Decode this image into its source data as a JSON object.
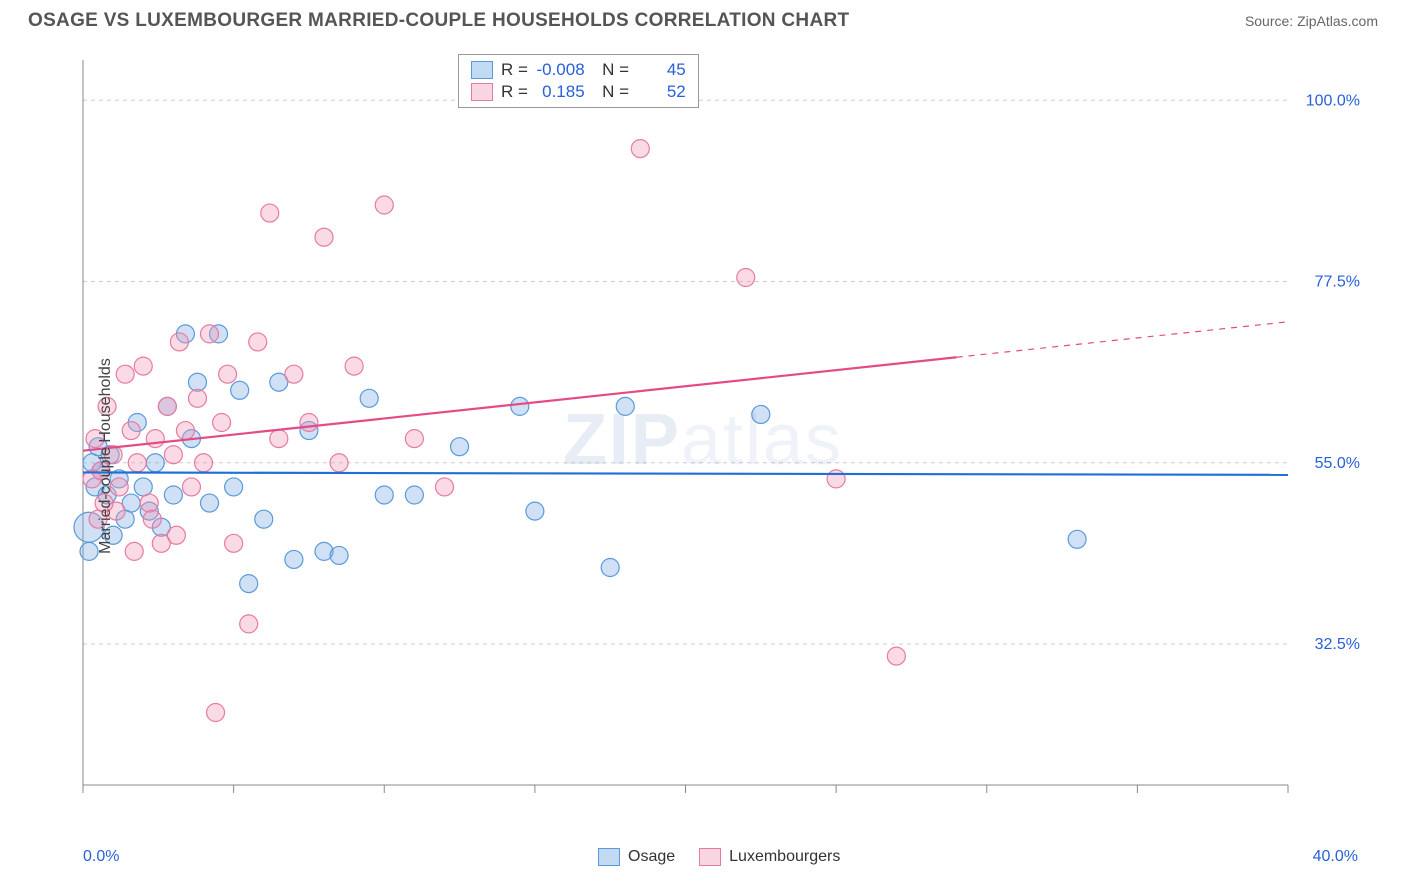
{
  "title": "OSAGE VS LUXEMBOURGER MARRIED-COUPLE HOUSEHOLDS CORRELATION CHART",
  "source_label": "Source:",
  "source_name": "ZipAtlas.com",
  "watermark": "ZIPatlas",
  "ylabel": "Married-couple Households",
  "chart": {
    "type": "scatter",
    "xlim": [
      0,
      40
    ],
    "ylim": [
      15,
      105
    ],
    "x_tick_step": 5,
    "x_tick_labels": {
      "0": "0.0%",
      "40": "40.0%"
    },
    "y_gridlines": [
      32.5,
      55.0,
      77.5,
      100.0
    ],
    "y_grid_labels": [
      "32.5%",
      "55.0%",
      "77.5%",
      "100.0%"
    ],
    "grid_color": "#cccccc",
    "grid_dash": "4,4",
    "axis_color": "#888888",
    "background": "#ffffff",
    "marker_radius": 9,
    "marker_stroke_width": 1.2,
    "series": [
      {
        "name": "Osage",
        "fill": "rgba(120,170,230,0.35)",
        "stroke": "#5a9ad8",
        "R": "-0.008",
        "N": "45",
        "trend": {
          "y_at_xmin": 53.8,
          "y_at_xmax": 53.5,
          "color": "#1f6fd6",
          "width": 2.2,
          "x_solid_end": 40
        },
        "points": [
          [
            0.3,
            55
          ],
          [
            0.4,
            52
          ],
          [
            0.5,
            57
          ],
          [
            0.6,
            54
          ],
          [
            0.8,
            51
          ],
          [
            0.9,
            56
          ],
          [
            1.0,
            46
          ],
          [
            1.2,
            53
          ],
          [
            1.4,
            48
          ],
          [
            1.6,
            50
          ],
          [
            1.8,
            60
          ],
          [
            2.0,
            52
          ],
          [
            2.2,
            49
          ],
          [
            2.4,
            55
          ],
          [
            2.6,
            47
          ],
          [
            2.8,
            62
          ],
          [
            3.0,
            51
          ],
          [
            3.4,
            71
          ],
          [
            3.6,
            58
          ],
          [
            3.8,
            65
          ],
          [
            4.2,
            50
          ],
          [
            4.5,
            71
          ],
          [
            5.0,
            52
          ],
          [
            5.2,
            64
          ],
          [
            5.5,
            40
          ],
          [
            6.0,
            48
          ],
          [
            6.5,
            65
          ],
          [
            7.0,
            43
          ],
          [
            7.5,
            59
          ],
          [
            8.0,
            44
          ],
          [
            8.5,
            43.5
          ],
          [
            9.5,
            63
          ],
          [
            10.0,
            51
          ],
          [
            11.0,
            51
          ],
          [
            12.5,
            57
          ],
          [
            14.5,
            62
          ],
          [
            15.0,
            49
          ],
          [
            17.5,
            42
          ],
          [
            18.0,
            62
          ],
          [
            22.5,
            61
          ],
          [
            33.0,
            45.5
          ],
          [
            0.2,
            44
          ]
        ],
        "big_point": {
          "x": 0.2,
          "y": 47,
          "r": 15
        }
      },
      {
        "name": "Luxembourgers",
        "fill": "rgba(240,150,180,0.35)",
        "stroke": "#e77aa3",
        "R": "0.185",
        "N": "52",
        "trend": {
          "y_at_xmin": 56.5,
          "y_at_xmax": 72.5,
          "color": "#e34b86",
          "width": 2.2,
          "x_solid_end": 29
        },
        "points": [
          [
            0.4,
            58
          ],
          [
            0.6,
            54
          ],
          [
            0.8,
            62
          ],
          [
            1.0,
            56
          ],
          [
            1.2,
            52
          ],
          [
            1.4,
            66
          ],
          [
            1.6,
            59
          ],
          [
            1.8,
            55
          ],
          [
            2.0,
            67
          ],
          [
            2.2,
            50
          ],
          [
            2.4,
            58
          ],
          [
            2.6,
            45
          ],
          [
            2.8,
            62
          ],
          [
            3.0,
            56
          ],
          [
            3.2,
            70
          ],
          [
            3.4,
            59
          ],
          [
            3.6,
            52
          ],
          [
            3.8,
            63
          ],
          [
            4.0,
            55
          ],
          [
            4.2,
            71
          ],
          [
            4.4,
            24
          ],
          [
            4.6,
            60
          ],
          [
            4.8,
            66
          ],
          [
            5.0,
            45
          ],
          [
            5.5,
            35
          ],
          [
            5.8,
            70
          ],
          [
            6.2,
            86
          ],
          [
            6.5,
            58
          ],
          [
            7.0,
            66
          ],
          [
            7.5,
            60
          ],
          [
            8.0,
            83
          ],
          [
            8.5,
            55
          ],
          [
            9.0,
            67
          ],
          [
            10.0,
            87
          ],
          [
            11.0,
            58
          ],
          [
            12.0,
            52
          ],
          [
            18.5,
            94
          ],
          [
            22.0,
            78
          ],
          [
            25.0,
            53
          ],
          [
            27.0,
            31
          ],
          [
            0.5,
            48
          ],
          [
            1.1,
            49
          ],
          [
            1.7,
            44
          ],
          [
            2.3,
            48
          ],
          [
            3.1,
            46
          ],
          [
            0.3,
            53
          ],
          [
            0.7,
            50
          ]
        ]
      }
    ]
  },
  "legend_bottom": [
    "Osage",
    "Luxembourgers"
  ]
}
